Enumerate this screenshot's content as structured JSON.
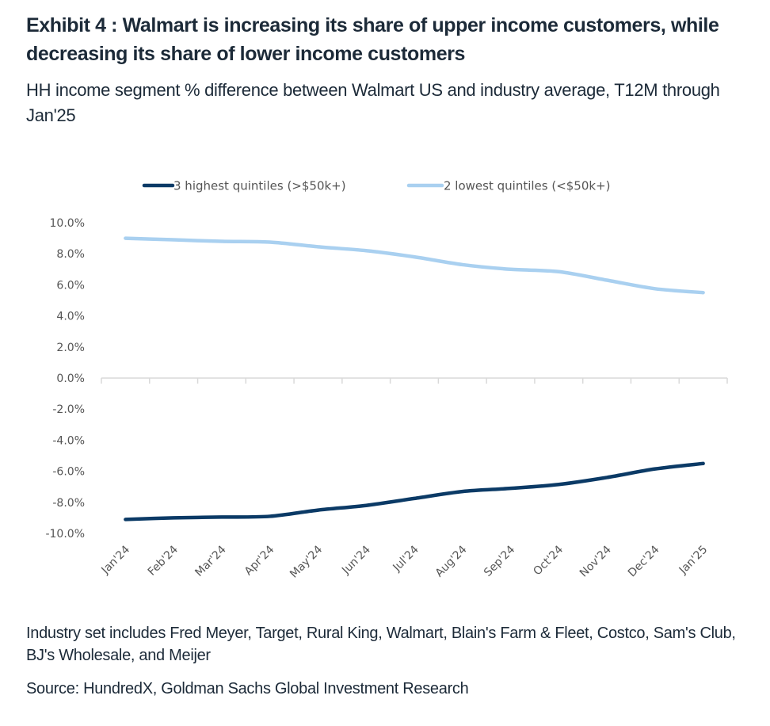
{
  "header": {
    "title": "Exhibit 4 : Walmart is increasing its share of upper income customers, while decreasing its share of lower income customers",
    "subtitle": "HH income segment % difference between Walmart US and industry average, T12M through Jan'25"
  },
  "footer": {
    "note": "Industry set includes Fred Meyer, Target, Rural King, Walmart, Blain's Farm & Fleet, Costco, Sam's Club, BJ's Wholesale, and Meijer",
    "source": "Source: HundredX, Goldman Sachs Global Investment Research"
  },
  "chart_data": {
    "type": "line",
    "title": "HH income segment % difference between Walmart US and industry average, T12M through Jan'25",
    "xlabel": "",
    "ylabel": "",
    "categories": [
      "Jan'24",
      "Feb'24",
      "Mar'24",
      "Apr'24",
      "May'24",
      "Jun'24",
      "Jul'24",
      "Aug'24",
      "Sep'24",
      "Oct'24",
      "Nov'24",
      "Dec'24",
      "Jan'25"
    ],
    "ylim": [
      -10,
      10
    ],
    "yticks": [
      10,
      8,
      6,
      4,
      2,
      0,
      -2,
      -4,
      -6,
      -8,
      -10
    ],
    "ytick_labels": [
      "10.0%",
      "8.0%",
      "6.0%",
      "4.0%",
      "2.0%",
      "0.0%",
      "-2.0%",
      "-4.0%",
      "-6.0%",
      "-8.0%",
      "-10.0%"
    ],
    "grid": false,
    "legend_position": "top",
    "series": [
      {
        "name": "3 highest quintiles (>$50k+)",
        "color": "#0b3a66",
        "values": [
          -9.1,
          -9.0,
          -8.95,
          -8.9,
          -8.5,
          -8.2,
          -7.75,
          -7.3,
          -7.1,
          -6.85,
          -6.4,
          -5.85,
          -5.5
        ]
      },
      {
        "name": "2 lowest quintiles (<$50k+)",
        "color": "#a9d0f0",
        "values": [
          9.0,
          8.9,
          8.8,
          8.75,
          8.45,
          8.2,
          7.8,
          7.3,
          7.0,
          6.85,
          6.3,
          5.75,
          5.5
        ]
      }
    ]
  }
}
